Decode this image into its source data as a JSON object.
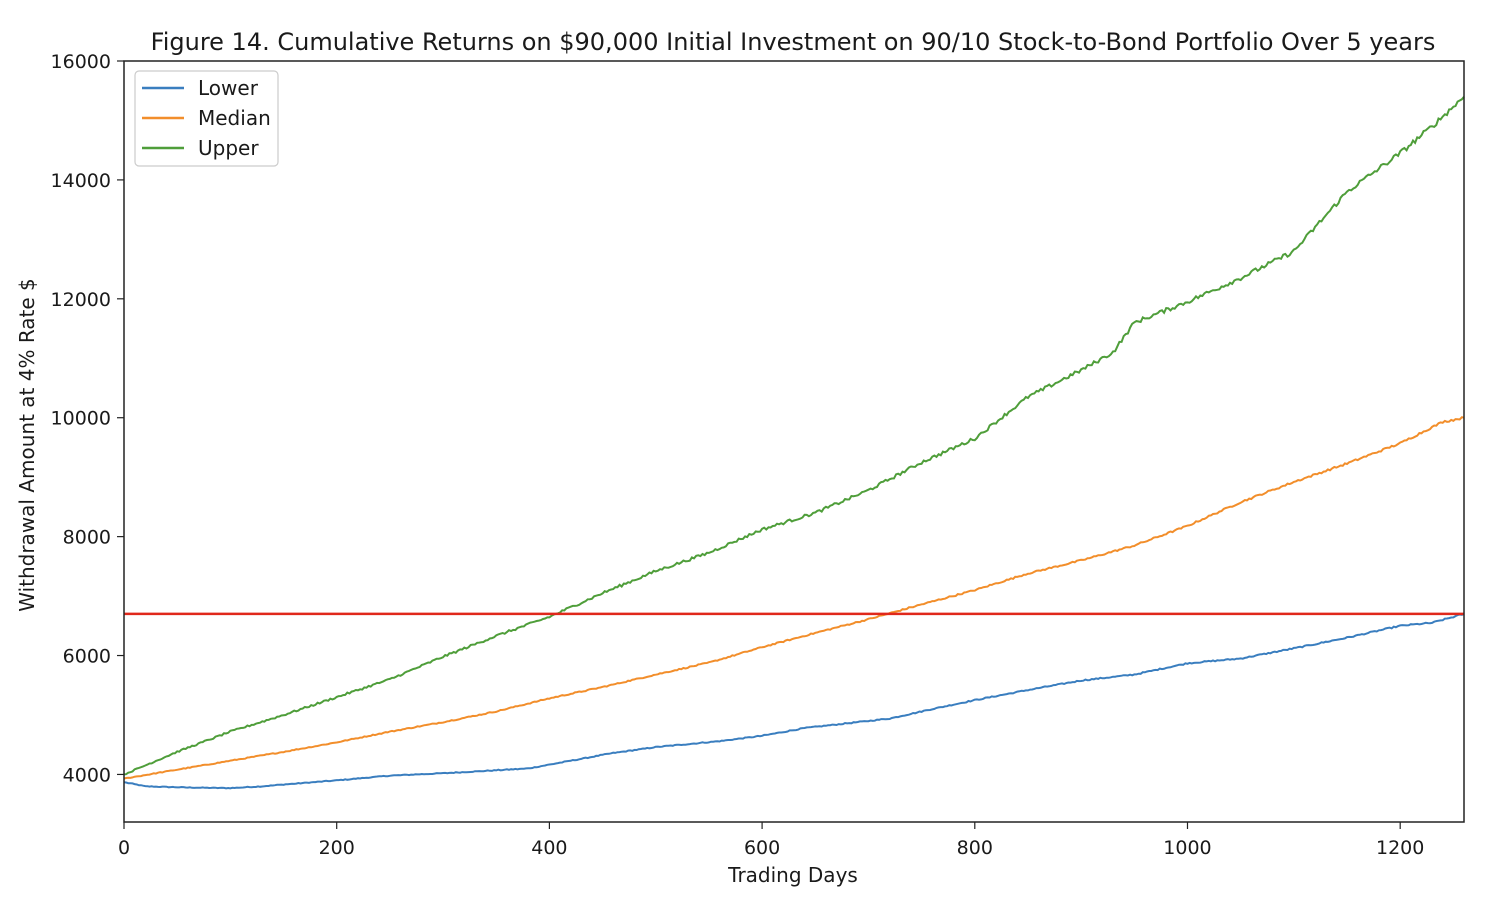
{
  "chart_data": {
    "type": "line",
    "title": "Figure 14. Cumulative Returns on $90,000 Initial Investment on 90/10 Stock-to-Bond Portfolio Over 5 years",
    "xlabel": "Trading Days",
    "ylabel": "Withdrawal Amount at 4% Rate $",
    "xlim": [
      0,
      1260
    ],
    "ylim": [
      3200,
      16000
    ],
    "x_ticks": [
      0,
      200,
      400,
      600,
      800,
      1000,
      1200
    ],
    "y_ticks": [
      4000,
      6000,
      8000,
      10000,
      12000,
      14000,
      16000
    ],
    "grid": false,
    "legend": {
      "position": "top-left",
      "entries": [
        "Lower",
        "Median",
        "Upper"
      ]
    },
    "series": [
      {
        "name": "Lower",
        "color": "#3a7ebf",
        "x": [
          0,
          20,
          60,
          100,
          130,
          150,
          200,
          250,
          300,
          350,
          380,
          420,
          460,
          500,
          560,
          600,
          640,
          680,
          720,
          760,
          800,
          850,
          900,
          950,
          1000,
          1050,
          1100,
          1150,
          1200,
          1230,
          1260
        ],
        "y": [
          3870,
          3800,
          3780,
          3770,
          3800,
          3830,
          3900,
          3980,
          4020,
          4070,
          4100,
          4230,
          4360,
          4460,
          4560,
          4650,
          4780,
          4860,
          4940,
          5100,
          5250,
          5420,
          5580,
          5680,
          5870,
          5950,
          6120,
          6300,
          6500,
          6550,
          6700
        ]
      },
      {
        "name": "Median",
        "color": "#f28e2b",
        "x": [
          0,
          50,
          100,
          150,
          200,
          250,
          300,
          350,
          400,
          450,
          500,
          550,
          600,
          650,
          700,
          750,
          800,
          850,
          900,
          950,
          1000,
          1050,
          1100,
          1150,
          1200,
          1240,
          1260
        ],
        "y": [
          3930,
          4080,
          4230,
          4380,
          4540,
          4720,
          4880,
          5060,
          5280,
          5470,
          5680,
          5880,
          6140,
          6380,
          6610,
          6860,
          7100,
          7380,
          7600,
          7850,
          8180,
          8580,
          8920,
          9230,
          9570,
          9930,
          10000
        ]
      },
      {
        "name": "Upper",
        "color": "#4f9e3a",
        "x": [
          0,
          50,
          100,
          150,
          200,
          250,
          300,
          350,
          400,
          450,
          500,
          550,
          600,
          650,
          700,
          750,
          800,
          850,
          900,
          930,
          950,
          1000,
          1050,
          1100,
          1150,
          1200,
          1230,
          1260
        ],
        "y": [
          4000,
          4380,
          4720,
          5000,
          5300,
          5600,
          5980,
          6330,
          6650,
          7050,
          7420,
          7730,
          8120,
          8400,
          8780,
          9250,
          9650,
          10350,
          10800,
          11100,
          11600,
          11950,
          12350,
          12800,
          13800,
          14450,
          14900,
          15400
        ]
      }
    ],
    "reference_line": {
      "y": 6700,
      "color": "#e0281b"
    }
  }
}
